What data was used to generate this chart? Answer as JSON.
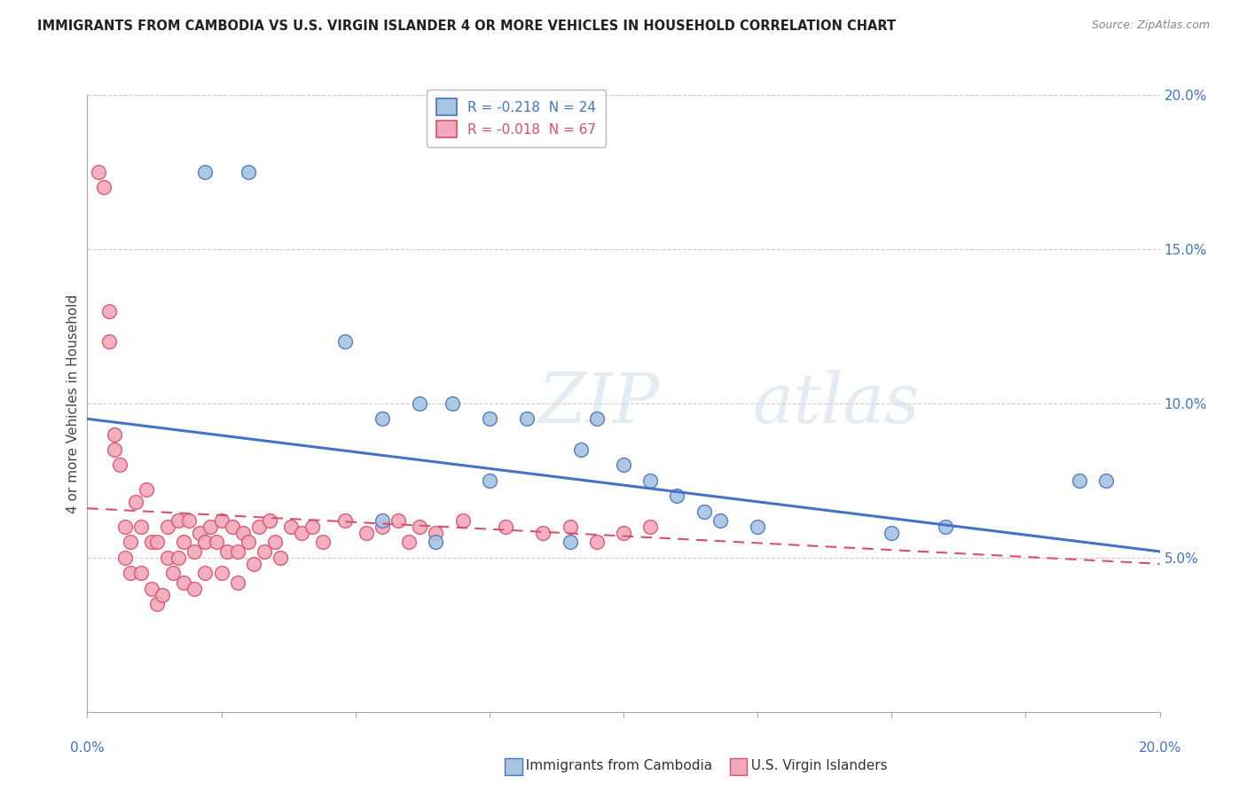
{
  "title": "IMMIGRANTS FROM CAMBODIA VS U.S. VIRGIN ISLANDER 4 OR MORE VEHICLES IN HOUSEHOLD CORRELATION CHART",
  "source": "Source: ZipAtlas.com",
  "ylabel": "4 or more Vehicles in Household",
  "legend_blue_label": "R = -0.218  N = 24",
  "legend_pink_label": "R = -0.018  N = 67",
  "blue_color": "#a8c4e0",
  "pink_color": "#f2a8bb",
  "blue_line_color": "#4472c4",
  "pink_line_color": "#d94f6e",
  "background_color": "#ffffff",
  "xlim": [
    0.0,
    0.2
  ],
  "ylim": [
    0.0,
    0.2
  ],
  "blue_line_x0": 0.0,
  "blue_line_y0": 0.095,
  "blue_line_x1": 0.2,
  "blue_line_y1": 0.052,
  "pink_line_x0": 0.0,
  "pink_line_y0": 0.066,
  "pink_line_x1": 0.2,
  "pink_line_y1": 0.048,
  "blue_x": [
    0.022,
    0.03,
    0.048,
    0.055,
    0.062,
    0.068,
    0.075,
    0.082,
    0.092,
    0.095,
    0.1,
    0.105,
    0.11,
    0.115,
    0.118,
    0.125,
    0.15,
    0.16,
    0.185,
    0.19,
    0.055,
    0.065,
    0.09,
    0.075
  ],
  "blue_y": [
    0.175,
    0.175,
    0.12,
    0.095,
    0.1,
    0.1,
    0.095,
    0.095,
    0.085,
    0.095,
    0.08,
    0.075,
    0.07,
    0.065,
    0.062,
    0.06,
    0.058,
    0.06,
    0.075,
    0.075,
    0.062,
    0.055,
    0.055,
    0.075
  ],
  "pink_x": [
    0.002,
    0.003,
    0.004,
    0.004,
    0.005,
    0.005,
    0.006,
    0.007,
    0.007,
    0.008,
    0.008,
    0.009,
    0.01,
    0.01,
    0.011,
    0.012,
    0.012,
    0.013,
    0.013,
    0.014,
    0.015,
    0.015,
    0.016,
    0.017,
    0.017,
    0.018,
    0.018,
    0.019,
    0.02,
    0.02,
    0.021,
    0.022,
    0.022,
    0.023,
    0.024,
    0.025,
    0.025,
    0.026,
    0.027,
    0.028,
    0.028,
    0.029,
    0.03,
    0.031,
    0.032,
    0.033,
    0.034,
    0.035,
    0.036,
    0.038,
    0.04,
    0.042,
    0.044,
    0.048,
    0.052,
    0.055,
    0.058,
    0.06,
    0.062,
    0.065,
    0.07,
    0.078,
    0.085,
    0.09,
    0.095,
    0.1,
    0.105
  ],
  "pink_y": [
    0.175,
    0.17,
    0.13,
    0.12,
    0.09,
    0.085,
    0.08,
    0.06,
    0.05,
    0.055,
    0.045,
    0.068,
    0.06,
    0.045,
    0.072,
    0.04,
    0.055,
    0.035,
    0.055,
    0.038,
    0.06,
    0.05,
    0.045,
    0.062,
    0.05,
    0.055,
    0.042,
    0.062,
    0.052,
    0.04,
    0.058,
    0.055,
    0.045,
    0.06,
    0.055,
    0.062,
    0.045,
    0.052,
    0.06,
    0.052,
    0.042,
    0.058,
    0.055,
    0.048,
    0.06,
    0.052,
    0.062,
    0.055,
    0.05,
    0.06,
    0.058,
    0.06,
    0.055,
    0.062,
    0.058,
    0.06,
    0.062,
    0.055,
    0.06,
    0.058,
    0.062,
    0.06,
    0.058,
    0.06,
    0.055,
    0.058,
    0.06
  ]
}
